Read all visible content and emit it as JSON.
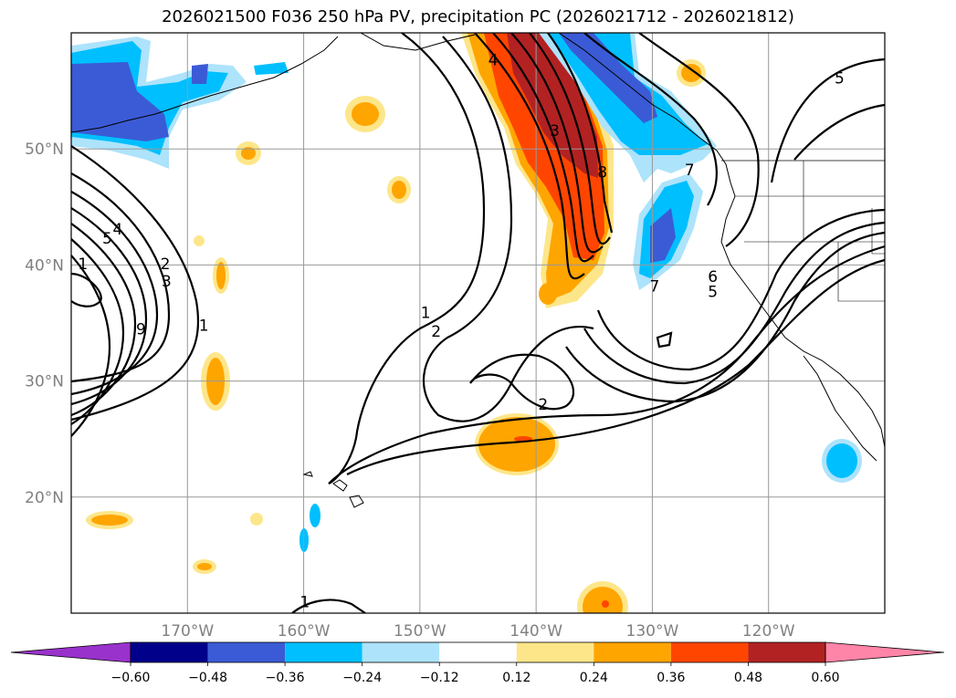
{
  "title": "2026021500 F036 250 hPa PV, precipitation PC (2026021712 - 2026021812)",
  "map": {
    "projection": "PlateCarree",
    "lon_range": [
      -180,
      -110
    ],
    "lat_range": [
      10,
      60
    ],
    "lat_ticks": [
      {
        "lat": 50,
        "label": "50°N"
      },
      {
        "lat": 40,
        "label": "40°N"
      },
      {
        "lat": 30,
        "label": "30°N"
      },
      {
        "lat": 20,
        "label": "20°N"
      }
    ],
    "lon_ticks": [
      {
        "lon": -170,
        "label": "170°W"
      },
      {
        "lon": -160,
        "label": "160°W"
      },
      {
        "lon": -150,
        "label": "150°W"
      },
      {
        "lon": -140,
        "label": "140°W"
      },
      {
        "lon": -130,
        "label": "130°W"
      },
      {
        "lon": -120,
        "label": "120°W"
      }
    ],
    "gridlines": true
  },
  "colorbar": {
    "levels": [
      "−0.60",
      "−0.48",
      "−0.36",
      "−0.24",
      "−0.12",
      "0.12",
      "0.24",
      "0.36",
      "0.48",
      "0.60"
    ],
    "colors": [
      "#9932cc",
      "#00008b",
      "#3b5bd6",
      "#00bfff",
      "#ade3fb",
      "#ffffff",
      "#fde68a",
      "#ffa500",
      "#ff4500",
      "#b22222",
      "#ff85a8"
    ],
    "extend": "both"
  },
  "pv_contour_labels": [
    {
      "text": "4",
      "lon": -143.7,
      "lat": 57.7
    },
    {
      "text": "3",
      "lon": -138.4,
      "lat": 51.6
    },
    {
      "text": "8",
      "lon": -134.3,
      "lat": 48.0
    },
    {
      "text": "5",
      "lon": -113.9,
      "lat": 56.1
    },
    {
      "text": "7",
      "lon": -126.8,
      "lat": 48.2
    },
    {
      "text": "5",
      "lon": -176.9,
      "lat": 42.3
    },
    {
      "text": "4",
      "lon": -176.0,
      "lat": 43.1
    },
    {
      "text": "1",
      "lon": -179.0,
      "lat": 40.1
    },
    {
      "text": "2",
      "lon": -171.9,
      "lat": 40.1
    },
    {
      "text": "3",
      "lon": -171.8,
      "lat": 38.6
    },
    {
      "text": "9",
      "lon": -174.0,
      "lat": 34.5
    },
    {
      "text": "1",
      "lon": -168.6,
      "lat": 34.8
    },
    {
      "text": "1",
      "lon": -149.5,
      "lat": 35.9
    },
    {
      "text": "2",
      "lon": -148.6,
      "lat": 34.3
    },
    {
      "text": "2",
      "lon": -139.4,
      "lat": 28.0
    },
    {
      "text": "7",
      "lon": -129.8,
      "lat": 38.2
    },
    {
      "text": "6",
      "lon": -124.8,
      "lat": 39.0
    },
    {
      "text": "5",
      "lon": -124.8,
      "lat": 37.7
    },
    {
      "text": "1",
      "lon": -159.9,
      "lat": 11.0
    }
  ],
  "precip_regions": [
    {
      "name": "pnw-positive",
      "levels": [
        "0.12",
        "0.24",
        "0.36",
        "0.48"
      ]
    },
    {
      "name": "alaska-negative",
      "levels": [
        "−0.12",
        "−0.24",
        "−0.36"
      ]
    },
    {
      "name": "bc-negative",
      "levels": [
        "−0.12",
        "−0.24",
        "−0.36"
      ]
    },
    {
      "name": "subtropical-positive",
      "levels": [
        "0.12",
        "0.24",
        "0.36"
      ]
    }
  ]
}
